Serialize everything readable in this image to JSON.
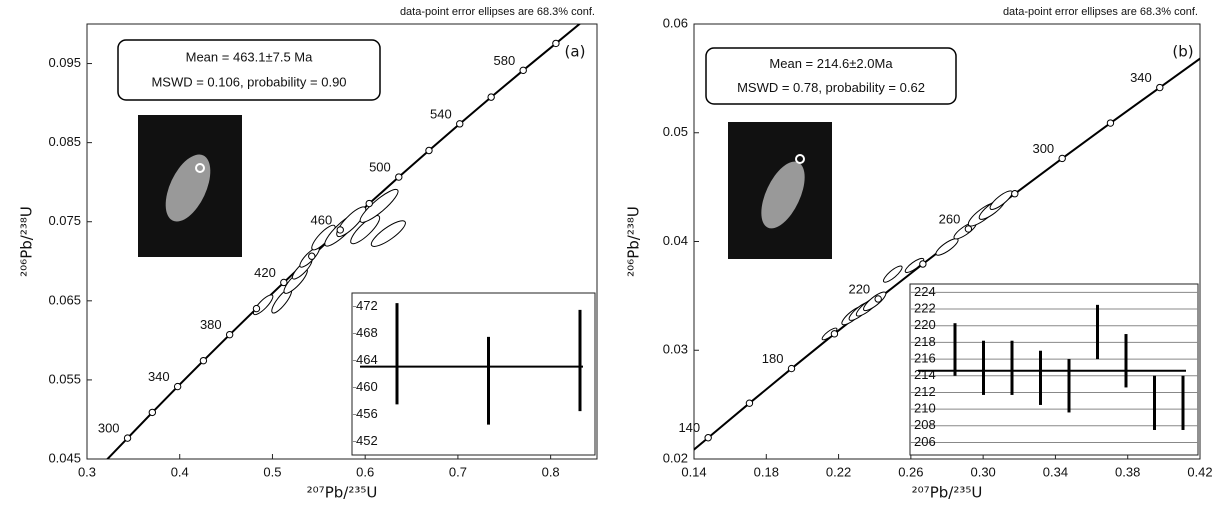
{
  "chart_data": [
    {
      "type": "concordia",
      "title": "data-point error ellipses are 68.3% conf.",
      "panel_label": "(a)",
      "mean_text": "Mean = 463.1±7.5 Ma",
      "mswd_text": "MSWD = 0.106, probability = 0.90",
      "x_label": "²⁰⁷Pb/²³⁵U",
      "y_label": "²⁰⁶Pb/²³⁸U",
      "xlim": [
        0.3,
        0.85
      ],
      "ylim": [
        0.045,
        0.1
      ],
      "xticks": [
        0.3,
        0.4,
        0.5,
        0.6,
        0.7,
        0.8
      ],
      "yticks": [
        0.045,
        0.055,
        0.065,
        0.075,
        0.085,
        0.095
      ],
      "concordia": {
        "ages": [
          300,
          320,
          340,
          360,
          380,
          400,
          420,
          440,
          460,
          480,
          500,
          520,
          540,
          560,
          580,
          600
        ],
        "x": [
          0.34374,
          0.37045,
          0.39775,
          0.42554,
          0.45385,
          0.48277,
          0.51226,
          0.54239,
          0.57312,
          0.60437,
          0.63624,
          0.6688,
          0.70198,
          0.73585,
          0.77041,
          0.80568
        ],
        "y": [
          0.047638,
          0.050893,
          0.054158,
          0.057434,
          0.060719,
          0.064016,
          0.067322,
          0.070638,
          0.073965,
          0.077302,
          0.08065,
          0.084007,
          0.087376,
          0.090755,
          0.094144,
          0.097544
        ]
      },
      "ellipses": {
        "x": [
          0.49,
          0.51,
          0.525,
          0.532,
          0.54,
          0.555,
          0.575,
          0.585,
          0.6,
          0.615,
          0.625
        ],
        "y": [
          0.0645,
          0.065,
          0.0675,
          0.069,
          0.0705,
          0.073,
          0.074,
          0.075,
          0.074,
          0.077,
          0.0735
        ],
        "x_err": [
          0.01,
          0.01,
          0.012,
          0.01,
          0.01,
          0.012,
          0.018,
          0.015,
          0.015,
          0.02,
          0.018
        ],
        "y_err": [
          0.0012,
          0.0015,
          0.0015,
          0.0012,
          0.0012,
          0.0015,
          0.002,
          0.0018,
          0.0017,
          0.002,
          0.0015
        ]
      },
      "inset": {
        "type": "errorbar",
        "ylim": [
          450,
          474
        ],
        "yticks": [
          452,
          456,
          460,
          464,
          468,
          472
        ],
        "values": [
          465,
          461,
          464
        ],
        "errors": [
          7.5,
          6.5,
          7.5
        ],
        "mean": 463.1,
        "grid": false
      }
    },
    {
      "type": "concordia",
      "title": "data-point error ellipses are 68.3% conf.",
      "panel_label": "(b)",
      "mean_text": "Mean = 214.6±2.0Ma",
      "mswd_text": "MSWD = 0.78, probability = 0.62",
      "x_label": "²⁰⁷Pb/²³⁵U",
      "y_label": "²⁰⁶Pb/²³⁸U",
      "xlim": [
        0.14,
        0.42
      ],
      "ylim": [
        0.02,
        0.06
      ],
      "xticks": [
        0.14,
        0.18,
        0.22,
        0.26,
        {
          "value": 0.3,
          "label": "0.30"
        },
        0.34,
        0.38,
        0.42
      ],
      "yticks": [
        0.02,
        0.03,
        0.04,
        0.05,
        0.06
      ],
      "concordia": {
        "ages": [
          140,
          160,
          180,
          200,
          220,
          240,
          260,
          280,
          300,
          320,
          340
        ],
        "x": [
          0.14784,
          0.17068,
          0.19396,
          0.21771,
          0.24192,
          0.26664,
          0.29183,
          0.31751,
          0.34374,
          0.37045,
          0.39775
        ],
        "y": [
          0.021955,
          0.025131,
          0.028316,
          0.031511,
          0.034717,
          0.037932,
          0.041157,
          0.044392,
          0.047638,
          0.050893,
          0.054158
        ]
      },
      "ellipses": {
        "x": [
          0.215,
          0.228,
          0.232,
          0.236,
          0.24,
          0.25,
          0.262,
          0.28,
          0.29,
          0.3,
          0.305,
          0.31
        ],
        "y": [
          0.0315,
          0.0332,
          0.0336,
          0.034,
          0.0345,
          0.037,
          0.0378,
          0.0395,
          0.041,
          0.0425,
          0.043,
          0.0438
        ],
        "x_err": [
          0.004,
          0.006,
          0.006,
          0.006,
          0.006,
          0.005,
          0.005,
          0.006,
          0.006,
          0.008,
          0.007,
          0.006
        ],
        "y_err": [
          0.0005,
          0.0008,
          0.0008,
          0.0008,
          0.0008,
          0.0007,
          0.0006,
          0.0007,
          0.0007,
          0.001,
          0.0009,
          0.0008
        ]
      },
      "inset": {
        "type": "errorbar",
        "ylim": [
          204.5,
          225
        ],
        "yticks": [
          206,
          208,
          210,
          212,
          214,
          216,
          218,
          220,
          222,
          224
        ],
        "values": [
          217.15,
          214.95,
          214.95,
          213.75,
          212.8,
          219.25,
          215.8,
          210.75,
          210.75
        ],
        "errors": [
          3.15,
          3.25,
          3.25,
          3.25,
          3.2,
          3.25,
          3.2,
          3.25,
          3.25
        ],
        "mean": 214.6,
        "grid": true
      }
    }
  ]
}
